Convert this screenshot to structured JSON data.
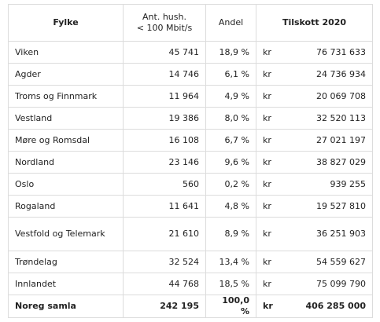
{
  "header": {
    "fylke": "Fylke",
    "households_line1": "Ant. hush.",
    "households_line2": "< 100 Mbit/s",
    "share": "Andel",
    "grant": "Tilskott 2020"
  },
  "rows": [
    {
      "county": "Viken",
      "households": "45 741",
      "share": "18,9 %",
      "currency": "kr",
      "grant": "76 731 633"
    },
    {
      "county": "Agder",
      "households": "14 746",
      "share": "6,1 %",
      "currency": "kr",
      "grant": "24 736 934"
    },
    {
      "county": "Troms og Finnmark",
      "households": "11 964",
      "share": "4,9 %",
      "currency": "kr",
      "grant": "20 069 708"
    },
    {
      "county": "Vestland",
      "households": "19 386",
      "share": "8,0 %",
      "currency": "kr",
      "grant": "32 520 113"
    },
    {
      "county": "Møre og Romsdal",
      "households": "16 108",
      "share": "6,7 %",
      "currency": "kr",
      "grant": "27 021 197"
    },
    {
      "county": "Nordland",
      "households": "23 146",
      "share": "9,6 %",
      "currency": "kr",
      "grant": "38 827 029"
    },
    {
      "county": "Oslo",
      "households": "560",
      "share": "0,2 %",
      "currency": "kr",
      "grant": "939 255"
    },
    {
      "county": "Rogaland",
      "households": "11 641",
      "share": "4,8 %",
      "currency": "kr",
      "grant": "19 527 810"
    },
    {
      "county": "Vestfold og Telemark",
      "households": "21 610",
      "share": "8,9 %",
      "currency": "kr",
      "grant": "36 251 903"
    },
    {
      "county": "Trøndelag",
      "households": "32 524",
      "share": "13,4 %",
      "currency": "kr",
      "grant": "54 559 627"
    },
    {
      "county": "Innlandet",
      "households": "44 768",
      "share": "18,5 %",
      "currency": "kr",
      "grant": "75 099 790"
    }
  ],
  "total": {
    "label": "Noreg samla",
    "households": "242 195",
    "share": "100,0 %",
    "currency": "kr",
    "grant": "406 285 000"
  }
}
